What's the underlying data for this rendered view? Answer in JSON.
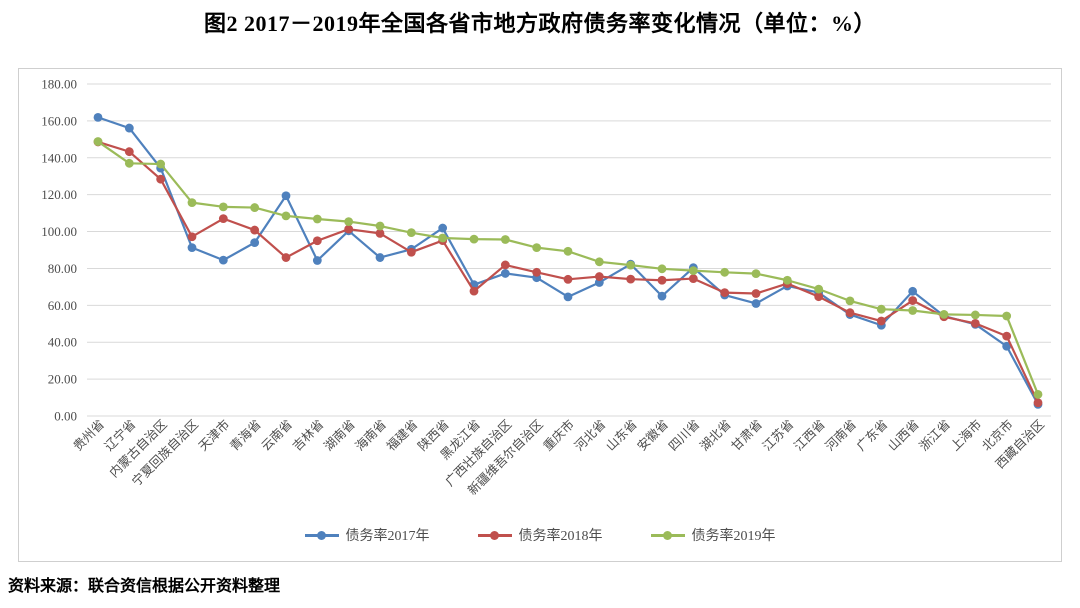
{
  "title": "图2  2017－2019年全国各省市地方政府债务率变化情况（单位：%）",
  "source": "资料来源：联合资信根据公开资料整理",
  "chart_data": {
    "type": "line",
    "title": "图2  2017－2019年全国各省市地方政府债务率变化情况（单位：%）",
    "unit": "%",
    "categories": [
      "贵州省",
      "辽宁省",
      "内蒙古自治区",
      "宁夏回族自治区",
      "天津市",
      "青海省",
      "云南省",
      "吉林省",
      "湖南省",
      "海南省",
      "福建省",
      "陕西省",
      "黑龙江省",
      "广西壮族自治区",
      "新疆维吾尔自治区",
      "重庆市",
      "河北省",
      "山东省",
      "安徽省",
      "四川省",
      "湖北省",
      "甘肃省",
      "江苏省",
      "江西省",
      "河南省",
      "广东省",
      "山西省",
      "浙江省",
      "上海市",
      "北京市",
      "西藏自治区"
    ],
    "series": [
      {
        "name": "债务率2017年",
        "color": "#4F81BD",
        "values": [
          161.9,
          156.1,
          134.4,
          91.3,
          84.5,
          94.0,
          119.4,
          84.3,
          100.4,
          85.9,
          90.4,
          101.9,
          71.2,
          77.3,
          75.0,
          64.6,
          72.4,
          82.3,
          65.0,
          80.4,
          65.6,
          61.0,
          70.5,
          66.9,
          55.0,
          49.2,
          67.6,
          54.2,
          49.7,
          37.8,
          6.3
        ]
      },
      {
        "name": "债务率2018年",
        "color": "#C0504D",
        "values": [
          148.6,
          143.3,
          128.4,
          97.2,
          107.0,
          100.8,
          85.9,
          95.0,
          101.3,
          99.0,
          88.8,
          95.1,
          67.7,
          81.9,
          77.9,
          74.1,
          75.6,
          74.2,
          73.6,
          74.5,
          66.9,
          66.4,
          71.8,
          64.7,
          56.0,
          51.5,
          62.6,
          53.8,
          50.2,
          43.3,
          7.2
        ]
      },
      {
        "name": "债务率2019年",
        "color": "#9BBB59",
        "values": [
          148.8,
          137.0,
          136.6,
          115.7,
          113.4,
          113.0,
          108.5,
          106.8,
          105.4,
          103.0,
          99.4,
          96.5,
          95.9,
          95.7,
          91.3,
          89.3,
          83.6,
          81.8,
          79.8,
          78.8,
          77.9,
          77.2,
          73.6,
          68.8,
          62.4,
          57.9,
          57.2,
          55.1,
          54.8,
          54.2,
          11.7
        ]
      }
    ],
    "ylim": [
      0,
      180
    ],
    "ytick_step": 20,
    "yticks": [
      "180.00",
      "160.00",
      "140.00",
      "120.00",
      "100.00",
      "80.00",
      "60.00",
      "40.00",
      "20.00",
      "0.00"
    ],
    "grid": true,
    "grid_color": "#d9d9d9",
    "legend_position": "bottom",
    "xlabel": "",
    "ylabel": ""
  }
}
